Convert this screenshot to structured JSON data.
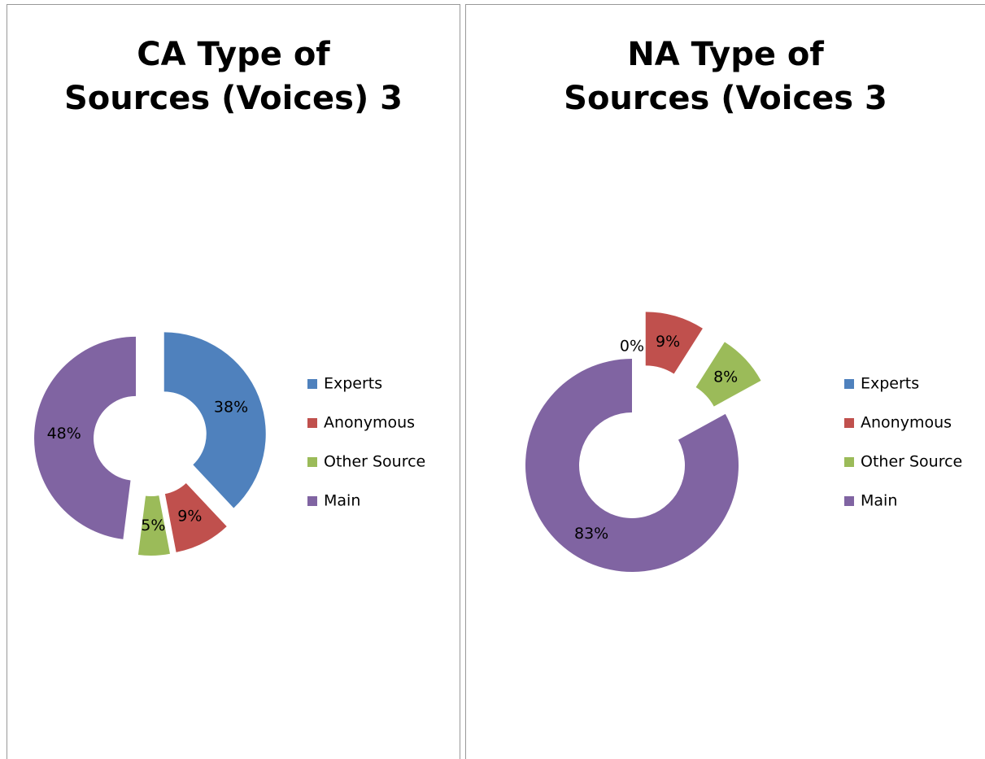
{
  "chart_data": [
    {
      "type": "donut",
      "title": "CA Type of Sources (Voices) 3",
      "categories": [
        "Experts",
        "Anonymous",
        "Other Source",
        "Main"
      ],
      "values": [
        38,
        9,
        5,
        48
      ],
      "value_labels": [
        "38%",
        "9%",
        "5%",
        "48%"
      ],
      "colors": [
        "#4f81bd",
        "#c0504d",
        "#9bbb59",
        "#8064a2"
      ],
      "legend": "right"
    },
    {
      "type": "donut",
      "title": "NA Type of Sources (Voices 3",
      "categories": [
        "Experts",
        "Anonymous",
        "Other Source",
        "Main"
      ],
      "values": [
        0,
        9,
        8,
        83
      ],
      "value_labels": [
        "0%",
        "9%",
        "8%",
        "83%"
      ],
      "colors": [
        "#4f81bd",
        "#c0504d",
        "#9bbb59",
        "#8064a2"
      ],
      "legend": "right"
    }
  ]
}
